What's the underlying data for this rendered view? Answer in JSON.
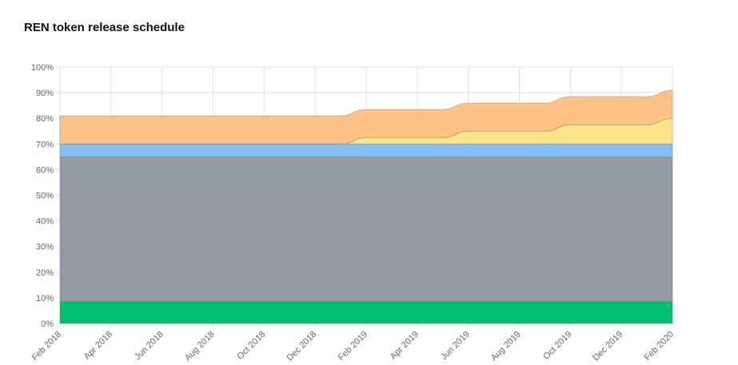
{
  "title": "REN token release schedule",
  "chart_data": {
    "type": "area",
    "stacked": true,
    "title": "REN token release schedule",
    "x": [
      "Feb 2018",
      "Mar 2018",
      "Apr 2018",
      "May 2018",
      "Jun 2018",
      "Jul 2018",
      "Aug 2018",
      "Sep 2018",
      "Oct 2018",
      "Nov 2018",
      "Dec 2018",
      "Jan 2019",
      "Feb 2019",
      "Mar 2019",
      "Apr 2019",
      "May 2019",
      "Jun 2019",
      "Jul 2019",
      "Aug 2019",
      "Sep 2019",
      "Oct 2019",
      "Nov 2019",
      "Dec 2019",
      "Jan 2020",
      "Feb 2020"
    ],
    "xtick_labels": [
      "Feb 2018",
      "Apr 2018",
      "Jun 2018",
      "Aug 2018",
      "Oct 2018",
      "Dec 2018",
      "Feb 2019",
      "Apr 2019",
      "Jun 2019",
      "Aug 2019",
      "Oct 2019",
      "Dec 2019",
      "Feb 2020"
    ],
    "ytick_labels": [
      "0%",
      "10%",
      "20%",
      "30%",
      "40%",
      "50%",
      "60%",
      "70%",
      "80%",
      "90%",
      "100%"
    ],
    "ylim": [
      0,
      100
    ],
    "grid": true,
    "series": [
      {
        "color": "#00bf6f",
        "values": [
          8.6,
          8.6,
          8.6,
          8.6,
          8.6,
          8.6,
          8.6,
          8.6,
          8.6,
          8.6,
          8.6,
          8.6,
          8.6,
          8.6,
          8.6,
          8.6,
          8.6,
          8.6,
          8.6,
          8.6,
          8.6,
          8.6,
          8.6,
          8.6,
          8.6
        ]
      },
      {
        "color": "#939aa4",
        "values": [
          56.4,
          56.4,
          56.4,
          56.4,
          56.4,
          56.4,
          56.4,
          56.4,
          56.4,
          56.4,
          56.4,
          56.4,
          56.4,
          56.4,
          56.4,
          56.4,
          56.4,
          56.4,
          56.4,
          56.4,
          56.4,
          56.4,
          56.4,
          56.4,
          56.4
        ]
      },
      {
        "color": "#85c1f9",
        "values": [
          5,
          5,
          5,
          5,
          5,
          5,
          5,
          5,
          5,
          5,
          5,
          5,
          5,
          5,
          5,
          5,
          5,
          5,
          5,
          5,
          5,
          5,
          5,
          5,
          5
        ]
      },
      {
        "color": "#fde58c",
        "values": [
          0,
          0,
          0,
          0,
          0,
          0,
          0,
          0,
          0,
          0,
          0,
          0,
          2.5,
          2.5,
          2.5,
          2.5,
          5,
          5,
          5,
          5,
          7.5,
          7.5,
          7.5,
          7.5,
          10
        ]
      },
      {
        "color": "#fec187",
        "values": [
          11,
          11,
          11,
          11,
          11,
          11,
          11,
          11,
          11,
          11,
          11,
          11,
          11,
          11,
          11,
          11,
          11,
          11,
          11,
          11,
          11,
          11,
          11,
          11,
          11
        ]
      }
    ]
  }
}
